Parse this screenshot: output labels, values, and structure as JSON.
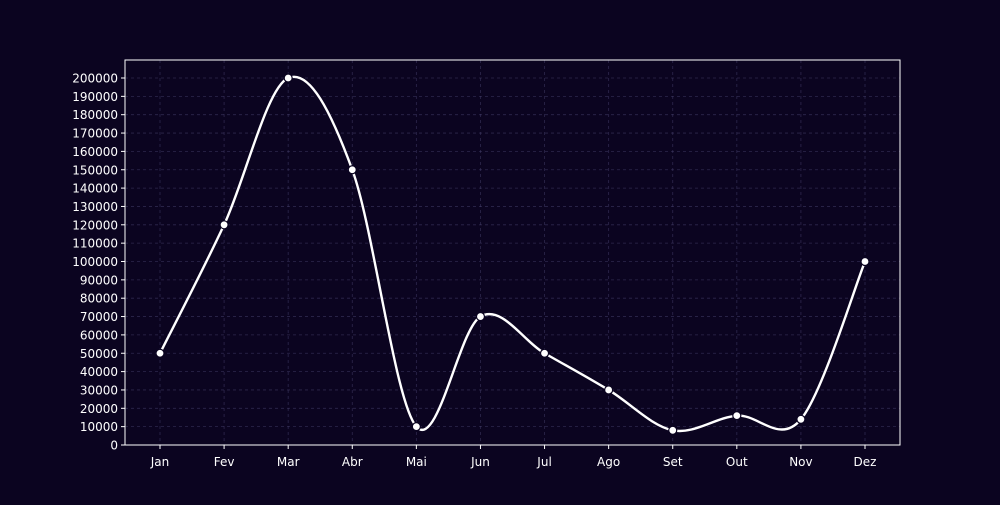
{
  "chart_data": {
    "type": "line",
    "title": "",
    "xlabel": "",
    "ylabel": "",
    "categories": [
      "Jan",
      "Fev",
      "Mar",
      "Abr",
      "Mai",
      "Jun",
      "Jul",
      "Ago",
      "Set",
      "Out",
      "Nov",
      "Dez"
    ],
    "series": [
      {
        "values": [
          50000,
          120000,
          200000,
          150000,
          10000,
          70000,
          50000,
          30000,
          8000,
          16000,
          14000,
          100000
        ]
      }
    ],
    "ylim": [
      0,
      200000
    ],
    "yticks": [
      "0",
      "10000",
      "20000",
      "30000",
      "40000",
      "50000",
      "60000",
      "70000",
      "80000",
      "90000",
      "100000",
      "110000",
      "120000",
      "130000",
      "140000",
      "150000",
      "160000",
      "170000",
      "180000",
      "190000",
      "200000"
    ],
    "grid": true,
    "smooth": true,
    "markers": true,
    "colors": {
      "background": "#0b0420",
      "line": "#ffffff",
      "marker_fill": "#ffffff",
      "grid": "#4a4470",
      "text": "#ffffff"
    }
  }
}
